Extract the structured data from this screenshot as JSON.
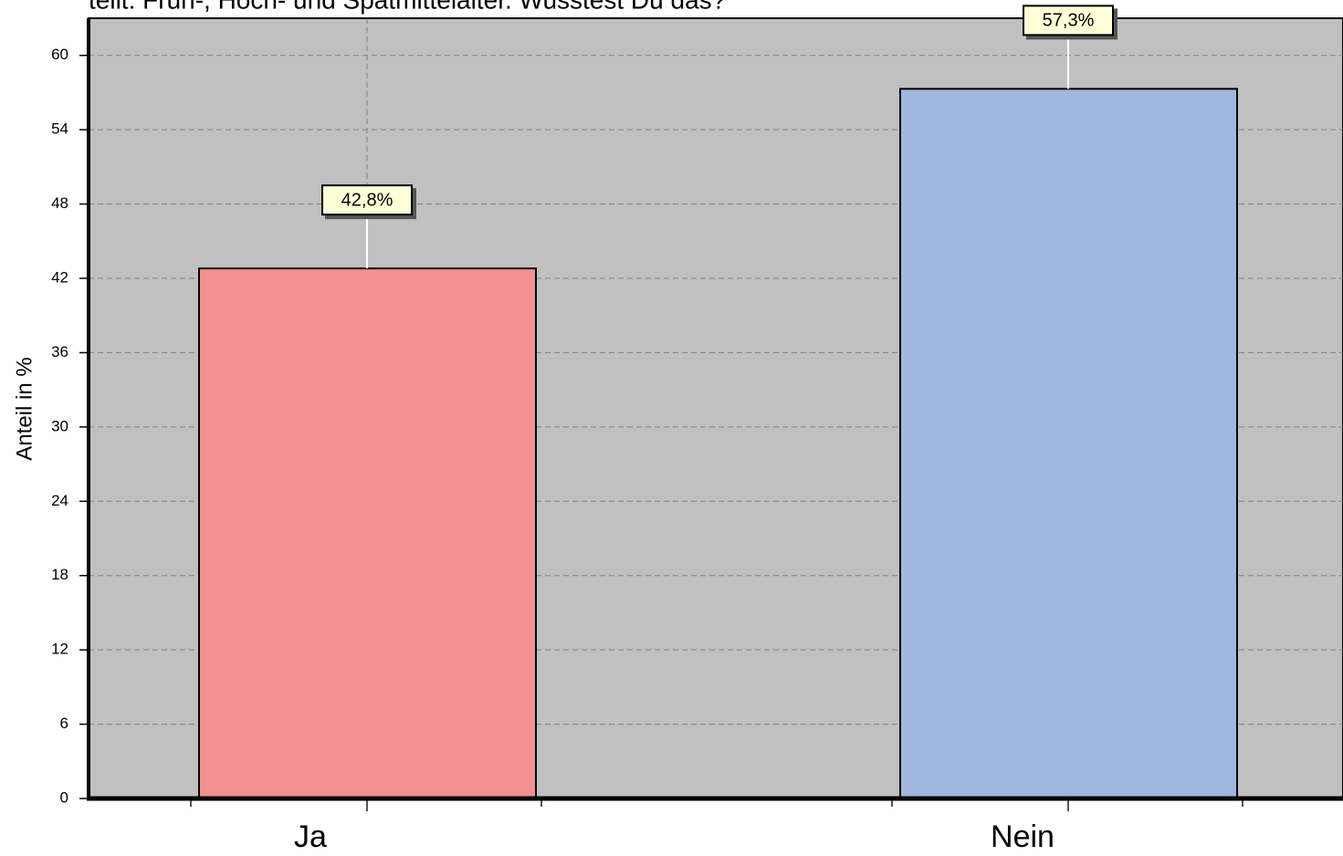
{
  "chart_data": {
    "type": "bar",
    "title": "teilt: Früh-, Hoch- und Spätmittelalter. Wusstest Du das?",
    "y_label": "Anteil in %",
    "categories": [
      "Ja",
      "Nein"
    ],
    "values": [
      42.8,
      57.3
    ],
    "value_labels": [
      "42,8%",
      "57,3%"
    ],
    "colors": [
      "#f4908f",
      "#a0b8df"
    ],
    "ylim": [
      0,
      63
    ],
    "yticks": [
      0,
      6,
      12,
      18,
      24,
      30,
      36,
      42,
      48,
      54,
      60
    ],
    "grid": true
  }
}
